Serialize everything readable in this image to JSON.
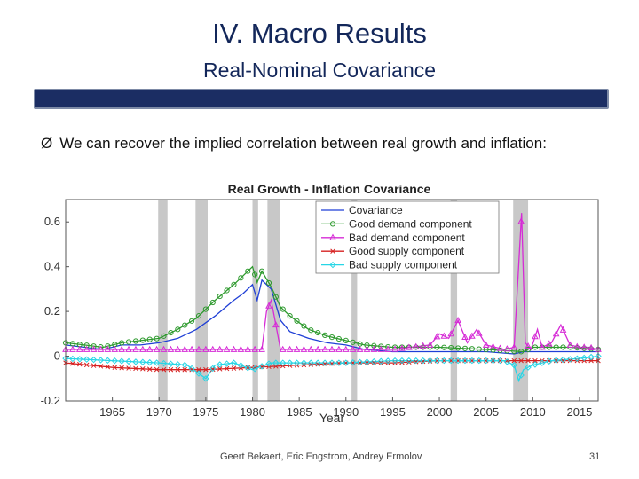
{
  "slide": {
    "title": "IV. Macro Results",
    "subtitle": "Real-Nominal Covariance",
    "bullet_marker": "Ø",
    "bullet_text": "We can recover the implied correlation between real growth and inflation:",
    "footer_authors": "Geert Bekaert, Eric Engstrom, Andrey Ermolov",
    "page_number": "31",
    "band_color": "#1b2d63"
  },
  "chart_data": {
    "type": "line",
    "title": "Real Growth - Inflation Covariance",
    "xlabel": "Year",
    "ylabel": "",
    "xlim": [
      1960,
      2017
    ],
    "ylim": [
      -0.2,
      0.7
    ],
    "xticks": [
      1965,
      1970,
      1975,
      1980,
      1985,
      1990,
      1995,
      2000,
      2005,
      2010,
      2015
    ],
    "yticks": [
      -0.2,
      0,
      0.2,
      0.4,
      0.6
    ],
    "ytick_labels": [
      "-0.2",
      "0",
      "0.2",
      "0.4",
      "0.6"
    ],
    "legend_position": "top-right",
    "recessions": [
      [
        1969.9,
        1970.9
      ],
      [
        1973.9,
        1975.2
      ],
      [
        1980.0,
        1980.6
      ],
      [
        1981.6,
        1982.9
      ],
      [
        1990.6,
        1991.2
      ],
      [
        2001.2,
        2001.9
      ],
      [
        2007.9,
        2009.5
      ]
    ],
    "series": [
      {
        "name": "Covariance",
        "color": "#1f3fd6",
        "marker": "none",
        "x": [
          1960,
          1962,
          1964,
          1966,
          1968,
          1970,
          1972,
          1974,
          1976,
          1978,
          1979,
          1980,
          1980.5,
          1981,
          1982,
          1983,
          1984,
          1986,
          1988,
          1990,
          1992,
          1995,
          2000,
          2001,
          2003,
          2005,
          2008,
          2009,
          2010,
          2012,
          2014,
          2017
        ],
        "y": [
          0.05,
          0.04,
          0.03,
          0.05,
          0.05,
          0.06,
          0.08,
          0.12,
          0.18,
          0.25,
          0.28,
          0.32,
          0.25,
          0.34,
          0.3,
          0.16,
          0.11,
          0.08,
          0.06,
          0.05,
          0.03,
          0.02,
          0.02,
          0.02,
          0.02,
          0.02,
          0.01,
          0.02,
          0.02,
          0.02,
          0.02,
          0.02
        ]
      },
      {
        "name": "Good demand component",
        "color": "#2e9a2e",
        "marker": "circle",
        "x": [
          1960,
          1962,
          1964,
          1966,
          1968,
          1970,
          1972,
          1974,
          1976,
          1978,
          1979,
          1980,
          1980.5,
          1981,
          1982,
          1983,
          1984,
          1986,
          1988,
          1990,
          1992,
          1995,
          2000,
          2005,
          2009,
          2010,
          2012,
          2014,
          2017
        ],
        "y": [
          0.06,
          0.05,
          0.04,
          0.06,
          0.07,
          0.08,
          0.12,
          0.17,
          0.25,
          0.32,
          0.36,
          0.4,
          0.33,
          0.38,
          0.31,
          0.22,
          0.18,
          0.12,
          0.09,
          0.07,
          0.05,
          0.04,
          0.04,
          0.03,
          0.02,
          0.04,
          0.04,
          0.04,
          0.03
        ]
      },
      {
        "name": "Bad demand component",
        "color": "#d62bd6",
        "marker": "triangle",
        "x": [
          1960,
          1965,
          1970,
          1975,
          1980,
          1981,
          1981.5,
          1982,
          1983,
          1984,
          1990,
          1995,
          1999,
          2000,
          2001,
          2002,
          2003,
          2004,
          2005,
          2006,
          2007,
          2008,
          2008.8,
          2009.2,
          2009.8,
          2010.5,
          2011,
          2012,
          2013,
          2014,
          2015,
          2016,
          2017
        ],
        "y": [
          0.03,
          0.03,
          0.03,
          0.03,
          0.03,
          0.03,
          0.2,
          0.25,
          0.03,
          0.03,
          0.03,
          0.03,
          0.05,
          0.1,
          0.08,
          0.16,
          0.06,
          0.12,
          0.05,
          0.04,
          0.03,
          0.04,
          0.64,
          0.06,
          0.03,
          0.12,
          0.04,
          0.06,
          0.14,
          0.05,
          0.04,
          0.04,
          0.03
        ]
      },
      {
        "name": "Good supply component",
        "color": "#d62020",
        "marker": "x",
        "x": [
          1960,
          1965,
          1970,
          1975,
          1980,
          1985,
          1990,
          1995,
          2000,
          2005,
          2010,
          2017
        ],
        "y": [
          -0.03,
          -0.05,
          -0.06,
          -0.06,
          -0.05,
          -0.04,
          -0.03,
          -0.03,
          -0.02,
          -0.02,
          -0.02,
          -0.02
        ]
      },
      {
        "name": "Bad supply component",
        "color": "#27d6e6",
        "marker": "diamond",
        "x": [
          1960,
          1965,
          1970,
          1973,
          1975,
          1976,
          1978,
          1980,
          1982,
          1985,
          1990,
          1995,
          2000,
          2005,
          2007,
          2008,
          2008.5,
          2009,
          2010,
          2012,
          2015,
          2017
        ],
        "y": [
          -0.01,
          -0.02,
          -0.03,
          -0.04,
          -0.1,
          -0.04,
          -0.03,
          -0.06,
          -0.03,
          -0.03,
          -0.03,
          -0.02,
          -0.02,
          -0.02,
          -0.02,
          -0.04,
          -0.11,
          -0.06,
          -0.04,
          -0.02,
          -0.01,
          0.0
        ]
      }
    ]
  }
}
